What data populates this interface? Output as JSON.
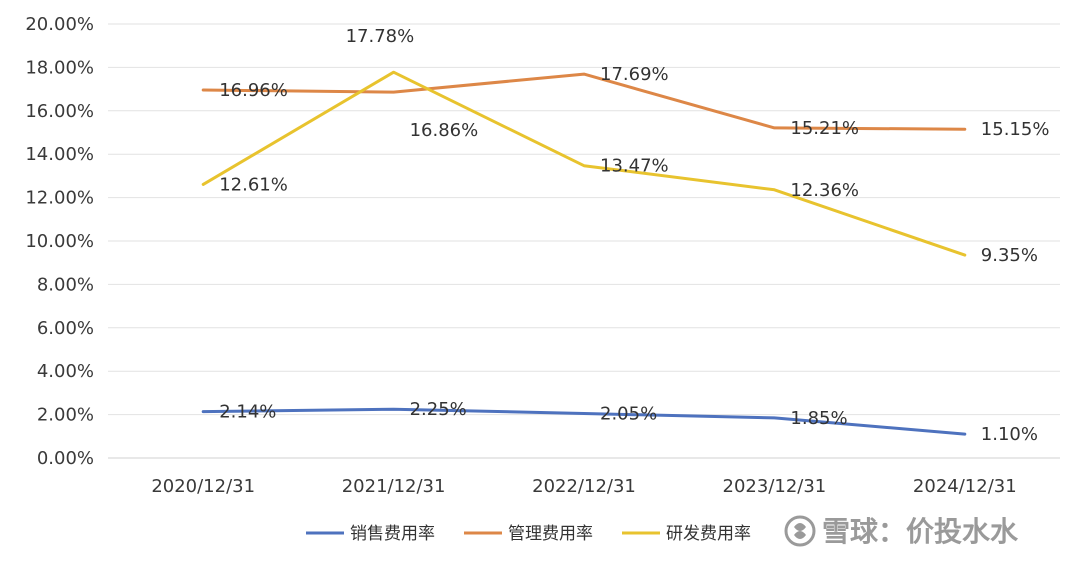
{
  "chart_data": {
    "type": "line",
    "categories": [
      "2020/12/31",
      "2021/12/31",
      "2022/12/31",
      "2023/12/31",
      "2024/12/31"
    ],
    "y_unit": "%",
    "ylim": [
      0,
      20
    ],
    "y_ticks": [
      "0.00%",
      "2.00%",
      "4.00%",
      "6.00%",
      "8.00%",
      "10.00%",
      "12.00%",
      "14.00%",
      "16.00%",
      "18.00%",
      "20.00%"
    ],
    "grid": true,
    "legend_position": "bottom",
    "series": [
      {
        "name": "销售费用率",
        "color": "#4e72be",
        "values": [
          2.14,
          2.25,
          2.05,
          1.85,
          1.1
        ],
        "labels": [
          "2.14%",
          "2.25%",
          "2.05%",
          "1.85%",
          "1.10%"
        ]
      },
      {
        "name": "管理费用率",
        "color": "#dd8747",
        "values": [
          16.96,
          16.86,
          17.69,
          15.21,
          15.15
        ],
        "labels": [
          "16.96%",
          "16.86%",
          "17.69%",
          "15.21%",
          "15.15%"
        ]
      },
      {
        "name": "研发费用率",
        "color": "#e8c32e",
        "values": [
          12.61,
          17.78,
          13.47,
          12.36,
          9.35
        ],
        "labels": [
          "12.61%",
          "17.78%",
          "13.47%",
          "12.36%",
          "9.35%"
        ]
      }
    ]
  },
  "watermark": {
    "text": "雪球：价投水水"
  }
}
